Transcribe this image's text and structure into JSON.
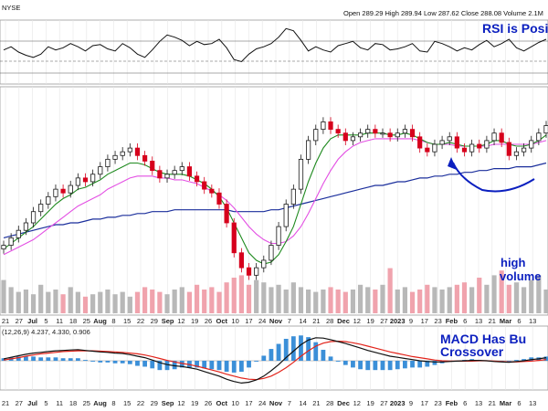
{
  "header": {
    "exchange": "NYSE",
    "ohlc_text": "Open 289.29   High 289.94   Low 287.62   Close 288.08   Volume 2.1M"
  },
  "annotations": {
    "rsi_note": "RSI is Posi",
    "volume_note_1": "high",
    "volume_note_2": "volume",
    "macd_note_1": "MACD Has Bu",
    "macd_note_2": "Crossover"
  },
  "macd_header": "(12,26,9)  4.237, 4.330, 0.906",
  "colors": {
    "price_up": "#1a1a1a",
    "price_down": "#d6001c",
    "ma_fast": "#1f8a1f",
    "ma_mid": "#e34fe3",
    "ma_slow": "#1b2f9c",
    "rsi_line": "#111111",
    "macd_line": "#111111",
    "signal_line": "#e2231a",
    "histogram": "#3b8fd8",
    "annotation": "#0b1fbf"
  },
  "chart_data": [
    {
      "type": "line",
      "panel": "rsi",
      "series": [
        {
          "values": [
            52,
            55,
            50,
            47,
            45,
            48,
            55,
            52,
            54,
            58,
            55,
            51,
            56,
            57,
            53,
            51,
            58,
            54,
            48,
            45,
            52,
            60,
            66,
            64,
            61,
            56,
            60,
            57,
            58,
            62,
            54,
            43,
            41,
            48,
            53,
            55,
            58,
            64,
            72,
            70,
            61,
            51,
            55,
            52,
            50,
            56,
            58,
            60,
            54,
            52,
            58,
            57,
            52,
            53,
            55,
            58,
            51,
            50,
            60,
            58,
            55,
            51,
            54,
            52,
            57,
            61,
            55,
            58,
            62,
            54,
            51,
            55,
            59,
            62
          ]
        }
      ]
    },
    {
      "type": "candlestick",
      "panel": "price",
      "x_ticks": [
        "21",
        "27",
        "Jul",
        "5",
        "11",
        "18",
        "25",
        "Aug",
        "8",
        "15",
        "22",
        "29",
        "Sep",
        "12",
        "19",
        "26",
        "Oct",
        "10",
        "17",
        "24",
        "Nov",
        "7",
        "14",
        "21",
        "28",
        "Dec",
        "12",
        "19",
        "27",
        "2023",
        "9",
        "17",
        "23",
        "Feb",
        "6",
        "13",
        "21",
        "Mar",
        "6",
        "13"
      ],
      "bold_ticks": [
        "Jul",
        "Aug",
        "Sep",
        "Oct",
        "Nov",
        "Dec",
        "2023",
        "Feb",
        "Mar"
      ],
      "series": [
        {
          "name": "close",
          "values": [
            210,
            214,
            218,
            222,
            228,
            232,
            236,
            240,
            238,
            242,
            246,
            244,
            248,
            252,
            256,
            258,
            260,
            262,
            258,
            255,
            250,
            246,
            248,
            250,
            252,
            247,
            244,
            240,
            238,
            232,
            222,
            206,
            198,
            194,
            198,
            202,
            210,
            220,
            232,
            240,
            256,
            266,
            272,
            276,
            272,
            270,
            266,
            268,
            270,
            272,
            270,
            270,
            268,
            270,
            272,
            268,
            262,
            260,
            264,
            266,
            268,
            262,
            260,
            264,
            262,
            266,
            270,
            265,
            258,
            260,
            262,
            266,
            270,
            274
          ]
        },
        {
          "name": "ma_fast",
          "values": [
            208,
            211,
            214,
            217,
            220,
            224,
            228,
            232,
            235,
            237,
            240,
            241,
            243,
            245,
            248,
            250,
            252,
            254,
            254,
            253,
            251,
            249,
            248,
            248,
            248,
            247,
            245,
            243,
            240,
            236,
            230,
            222,
            214,
            206,
            202,
            200,
            201,
            205,
            212,
            220,
            232,
            244,
            254,
            262,
            267,
            269,
            269,
            269,
            269,
            270,
            270,
            270,
            269,
            269,
            270,
            269,
            267,
            265,
            264,
            264,
            265,
            264,
            263,
            263,
            263,
            264,
            266,
            266,
            264,
            263,
            263,
            264,
            266,
            269
          ]
        },
        {
          "name": "ma_mid",
          "values": [
            205,
            207,
            209,
            211,
            213,
            216,
            219,
            222,
            225,
            228,
            231,
            233,
            235,
            237,
            240,
            242,
            244,
            246,
            247,
            247,
            247,
            246,
            246,
            245,
            245,
            244,
            243,
            241,
            239,
            237,
            234,
            230,
            225,
            220,
            216,
            213,
            211,
            211,
            212,
            215,
            220,
            227,
            235,
            243,
            250,
            256,
            260,
            263,
            265,
            266,
            267,
            267,
            267,
            267,
            267,
            267,
            266,
            265,
            264,
            264,
            264,
            263,
            263,
            263,
            263,
            263,
            264,
            264,
            264,
            264,
            264,
            264,
            265,
            266
          ]
        },
        {
          "name": "ma_slow",
          "values": [
            214,
            215,
            216,
            217,
            218,
            219,
            220,
            221,
            221,
            222,
            222,
            223,
            224,
            224,
            225,
            225,
            226,
            226,
            227,
            227,
            228,
            228,
            228,
            229,
            229,
            229,
            229,
            229,
            229,
            229,
            229,
            228,
            228,
            228,
            228,
            228,
            229,
            229,
            230,
            231,
            232,
            233,
            234,
            235,
            236,
            237,
            238,
            239,
            240,
            241,
            242,
            242,
            243,
            244,
            244,
            245,
            246,
            246,
            247,
            247,
            248,
            248,
            249,
            249,
            250,
            250,
            251,
            251,
            251,
            252,
            252,
            252,
            253,
            254
          ]
        }
      ]
    },
    {
      "type": "bar",
      "panel": "volume",
      "series": [
        {
          "values": [
            1.4,
            1.1,
            0.9,
            1.0,
            0.8,
            1.2,
            0.9,
            1.0,
            0.8,
            1.1,
            0.9,
            0.7,
            0.8,
            0.9,
            1.0,
            0.8,
            0.9,
            0.7,
            0.9,
            1.1,
            1.0,
            0.9,
            0.8,
            1.0,
            1.1,
            0.9,
            1.2,
            1.0,
            1.1,
            0.9,
            1.3,
            1.5,
            1.6,
            1.2,
            1.4,
            1.3,
            1.1,
            1.2,
            1.0,
            1.3,
            1.1,
            1.0,
            0.9,
            1.0,
            1.1,
            1.0,
            0.9,
            1.0,
            1.2,
            1.1,
            1.0,
            1.2,
            1.9,
            1.0,
            1.1,
            0.9,
            1.0,
            1.2,
            1.1,
            1.0,
            1.1,
            1.2,
            1.3,
            1.1,
            1.5,
            1.2,
            1.6,
            1.8,
            1.2,
            1.3,
            1.1,
            1.4,
            1.6,
            1.0
          ]
        }
      ]
    },
    {
      "type": "line",
      "panel": "macd",
      "series": [
        {
          "name": "macd",
          "values": [
            0.5,
            0.9,
            1.3,
            1.7,
            2.0,
            2.2,
            2.4,
            2.6,
            2.7,
            2.8,
            2.9,
            2.7,
            2.5,
            2.3,
            2.2,
            2.0,
            1.9,
            1.6,
            1.2,
            0.8,
            0.2,
            -0.5,
            -1.0,
            -1.3,
            -1.5,
            -1.8,
            -2.2,
            -2.8,
            -3.4,
            -4.0,
            -4.8,
            -5.4,
            -5.8,
            -5.6,
            -5.0,
            -4.0,
            -2.6,
            -1.0,
            0.8,
            2.5,
            4.2,
            5.4,
            6.0,
            5.9,
            5.5,
            5.0,
            4.5,
            3.9,
            3.3,
            2.7,
            2.2,
            1.7,
            1.2,
            0.9,
            0.6,
            0.3,
            0.0,
            -0.2,
            -0.3,
            -0.3,
            -0.2,
            -0.1,
            0.0,
            0.1,
            0.1,
            0.0,
            -0.2,
            -0.3,
            -0.4,
            -0.2,
            0.0,
            0.3,
            0.5,
            0.8
          ]
        },
        {
          "name": "signal",
          "values": [
            0.2,
            0.5,
            0.8,
            1.2,
            1.5,
            1.8,
            2.0,
            2.2,
            2.4,
            2.5,
            2.6,
            2.6,
            2.6,
            2.5,
            2.4,
            2.3,
            2.2,
            2.0,
            1.8,
            1.5,
            1.1,
            0.6,
            0.1,
            -0.3,
            -0.7,
            -1.0,
            -1.4,
            -1.9,
            -2.4,
            -2.9,
            -3.5,
            -4.0,
            -4.5,
            -4.8,
            -4.9,
            -4.6,
            -4.0,
            -3.0,
            -1.8,
            -0.4,
            1.2,
            2.6,
            3.8,
            4.6,
            5.0,
            5.1,
            5.0,
            4.7,
            4.3,
            3.8,
            3.3,
            2.8,
            2.3,
            1.9,
            1.5,
            1.1,
            0.8,
            0.5,
            0.2,
            0.0,
            -0.1,
            -0.1,
            -0.1,
            -0.1,
            0.0,
            0.0,
            -0.1,
            -0.2,
            -0.3,
            -0.3,
            -0.2,
            -0.1,
            0.1,
            0.3
          ]
        }
      ]
    }
  ]
}
